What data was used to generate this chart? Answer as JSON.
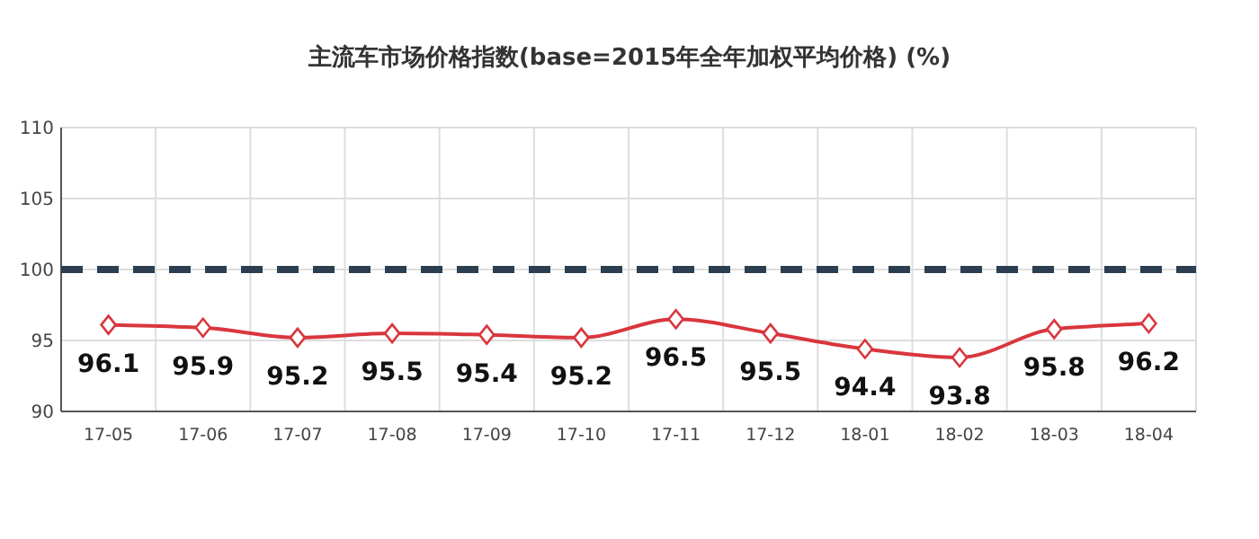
{
  "chart_data": {
    "type": "line",
    "title": "主流车市场价格指数(base=2015年全年加权平均价格) (%)",
    "categories": [
      "17-05",
      "17-06",
      "17-07",
      "17-08",
      "17-09",
      "17-10",
      "17-11",
      "17-12",
      "18-01",
      "18-02",
      "18-03",
      "18-04"
    ],
    "series": [
      {
        "color": "#d9363e",
        "values": [
          96.1,
          95.9,
          95.2,
          95.5,
          95.4,
          95.2,
          96.5,
          95.5,
          94.4,
          93.8,
          95.8,
          96.2
        ]
      }
    ],
    "ylim": [
      90,
      110
    ],
    "yticks": [
      90,
      95,
      100,
      105,
      110
    ],
    "ref_lines": [
      {
        "axis": "y",
        "value": 100,
        "color": "#2c3e50",
        "line_style": "dashed"
      }
    ],
    "grid": true,
    "marker": "diamond",
    "line_style": "solid",
    "data_labels": true
  }
}
